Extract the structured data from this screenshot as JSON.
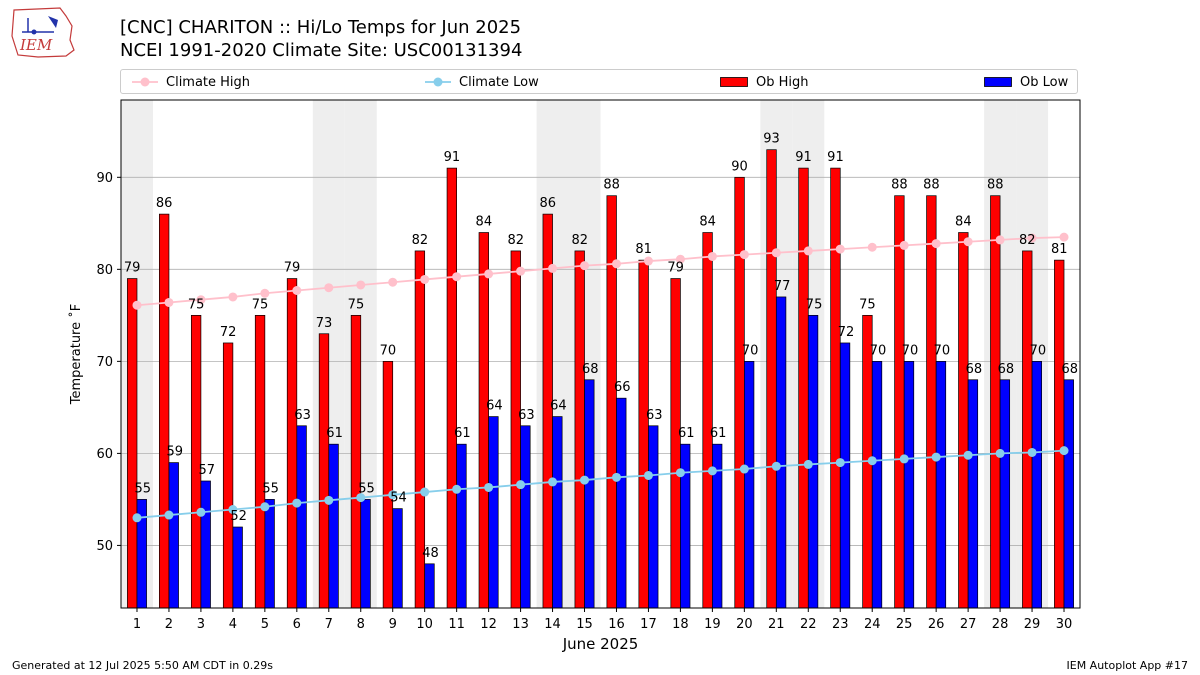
{
  "title_line1": "[CNC] CHARITON :: Hi/Lo Temps for Jun 2025",
  "title_line2": "NCEI 1991-2020 Climate Site: USC00131394",
  "logo_text": "IEM",
  "footer_left": "Generated at 12 Jul 2025 5:50 AM CDT in 0.29s",
  "footer_right": "IEM Autoplot App #17",
  "colors": {
    "ob_high": "#ff0000",
    "ob_low": "#0000ff",
    "climate_high": "#ffc0cb",
    "climate_low": "#87ceeb",
    "weekend_band": "#eeeeee"
  },
  "legend": {
    "climate_high": "Climate High",
    "climate_low": "Climate Low",
    "ob_high": "Ob High",
    "ob_low": "Ob Low"
  },
  "chart_data": {
    "type": "bar",
    "xlabel": "June 2025",
    "ylabel": "Temperature ˚F",
    "ylim": [
      43.2,
      98.4
    ],
    "yticks": [
      50,
      60,
      70,
      80,
      90
    ],
    "grid": "y",
    "legend_position": "top",
    "categories": [
      1,
      2,
      3,
      4,
      5,
      6,
      7,
      8,
      9,
      10,
      11,
      12,
      13,
      14,
      15,
      16,
      17,
      18,
      19,
      20,
      21,
      22,
      23,
      24,
      25,
      26,
      27,
      28,
      29,
      30
    ],
    "highlight_days": [
      1,
      7,
      8,
      14,
      15,
      21,
      22,
      28,
      29
    ],
    "series": [
      {
        "name": "Ob High",
        "type": "bar",
        "values": [
          79,
          86,
          75,
          72,
          75,
          79,
          73,
          75,
          70,
          82,
          91,
          84,
          82,
          86,
          82,
          88,
          81,
          79,
          84,
          90,
          93,
          91,
          91,
          75,
          88,
          88,
          84,
          88,
          82,
          81
        ]
      },
      {
        "name": "Ob Low",
        "type": "bar",
        "values": [
          55,
          59,
          57,
          52,
          55,
          63,
          61,
          55,
          54,
          48,
          61,
          64,
          63,
          64,
          68,
          66,
          63,
          61,
          61,
          70,
          77,
          75,
          72,
          70,
          70,
          70,
          68,
          68,
          70,
          68
        ]
      },
      {
        "name": "Climate High",
        "type": "line",
        "values": [
          76.1,
          76.4,
          76.7,
          77.0,
          77.4,
          77.7,
          78.0,
          78.3,
          78.6,
          78.9,
          79.2,
          79.5,
          79.8,
          80.1,
          80.4,
          80.6,
          80.9,
          81.1,
          81.4,
          81.6,
          81.8,
          82.0,
          82.2,
          82.4,
          82.6,
          82.8,
          83.0,
          83.2,
          83.4,
          83.5
        ]
      },
      {
        "name": "Climate Low",
        "type": "line",
        "values": [
          53.0,
          53.3,
          53.6,
          53.9,
          54.2,
          54.6,
          54.9,
          55.2,
          55.5,
          55.8,
          56.1,
          56.3,
          56.6,
          56.9,
          57.1,
          57.4,
          57.6,
          57.9,
          58.1,
          58.3,
          58.6,
          58.8,
          59.0,
          59.2,
          59.4,
          59.6,
          59.8,
          60.0,
          60.1,
          60.3
        ]
      }
    ]
  }
}
